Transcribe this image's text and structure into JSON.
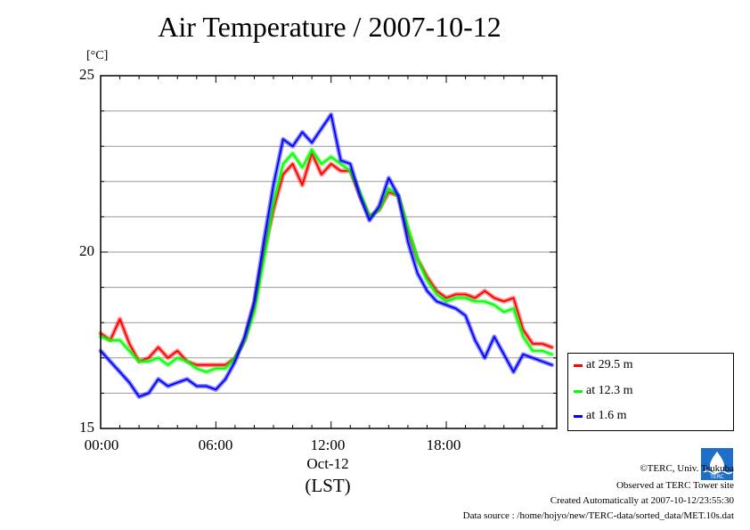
{
  "chart_data": {
    "type": "line",
    "title": "Air Temperature / 2007-10-12",
    "ylabel": "[°C]",
    "ylim": [
      15,
      25
    ],
    "yticks": [
      "15",
      "20",
      "25"
    ],
    "xlim": [
      0,
      23.75
    ],
    "xticks": [
      {
        "label": "00:00",
        "value": 0
      },
      {
        "label": "06:00",
        "value": 6
      },
      {
        "label": "12:00",
        "value": 12
      },
      {
        "label": "18:00",
        "value": 18
      }
    ],
    "xdate": "Oct-12",
    "xlabel": "(LST)",
    "grid": "horizontal",
    "legend_position": "right",
    "x": [
      0,
      0.5,
      1,
      1.5,
      2,
      2.5,
      3,
      3.5,
      4,
      4.5,
      5,
      5.5,
      6,
      6.5,
      7,
      7.5,
      8,
      8.5,
      9,
      9.5,
      10,
      10.5,
      11,
      11.5,
      12,
      12.5,
      13,
      13.5,
      14,
      14.5,
      15,
      15.5,
      16,
      16.5,
      17,
      17.5,
      18,
      18.5,
      19,
      19.5,
      20,
      20.5,
      21,
      21.5,
      22,
      22.5,
      23,
      23.5
    ],
    "series": [
      {
        "name": "at 29.5 m",
        "color": "#ff0000",
        "values": [
          17.7,
          17.5,
          18.1,
          17.4,
          16.9,
          17.0,
          17.3,
          17.0,
          17.2,
          16.9,
          16.8,
          16.8,
          16.8,
          16.8,
          17.0,
          17.5,
          18.5,
          20.0,
          21.2,
          22.2,
          22.5,
          21.9,
          22.8,
          22.2,
          22.5,
          22.3,
          22.3,
          21.6,
          21.0,
          21.2,
          21.7,
          21.6,
          20.6,
          19.8,
          19.3,
          18.9,
          18.7,
          18.8,
          18.8,
          18.7,
          18.9,
          18.7,
          18.6,
          18.7,
          17.8,
          17.4,
          17.4,
          17.3
        ]
      },
      {
        "name": "at 12.3 m",
        "color": "#00ff00",
        "values": [
          17.6,
          17.5,
          17.5,
          17.2,
          16.9,
          16.9,
          17.0,
          16.8,
          17.0,
          16.9,
          16.7,
          16.6,
          16.7,
          16.7,
          17.0,
          17.5,
          18.3,
          19.8,
          21.4,
          22.5,
          22.8,
          22.4,
          22.9,
          22.5,
          22.7,
          22.5,
          22.3,
          21.7,
          21.0,
          21.2,
          21.8,
          21.6,
          20.7,
          19.8,
          19.2,
          18.8,
          18.6,
          18.7,
          18.7,
          18.6,
          18.6,
          18.5,
          18.3,
          18.4,
          17.6,
          17.2,
          17.2,
          17.1
        ]
      },
      {
        "name": "at 1.6 m",
        "color": "#0000ff",
        "values": [
          17.2,
          16.9,
          16.6,
          16.3,
          15.9,
          16.0,
          16.4,
          16.2,
          16.3,
          16.4,
          16.2,
          16.2,
          16.1,
          16.4,
          16.9,
          17.6,
          18.6,
          20.3,
          21.9,
          23.2,
          23.0,
          23.4,
          23.1,
          23.5,
          23.9,
          22.6,
          22.5,
          21.6,
          20.9,
          21.3,
          22.1,
          21.6,
          20.3,
          19.4,
          18.9,
          18.6,
          18.5,
          18.4,
          18.2,
          17.5,
          17.0,
          17.6,
          17.1,
          16.6,
          17.1,
          17.0,
          16.9,
          16.8
        ]
      }
    ]
  },
  "credits": {
    "copyright": "©TERC, Univ. Tsukuba",
    "site": "Observed at TERC Tower site",
    "created": "Created Automatically at 2007-10-12/23:55:30",
    "source": "Data source : /home/hojyo/new/TERC-data/sorted_data/MET.10s.dat"
  },
  "logo_text": "TERC"
}
